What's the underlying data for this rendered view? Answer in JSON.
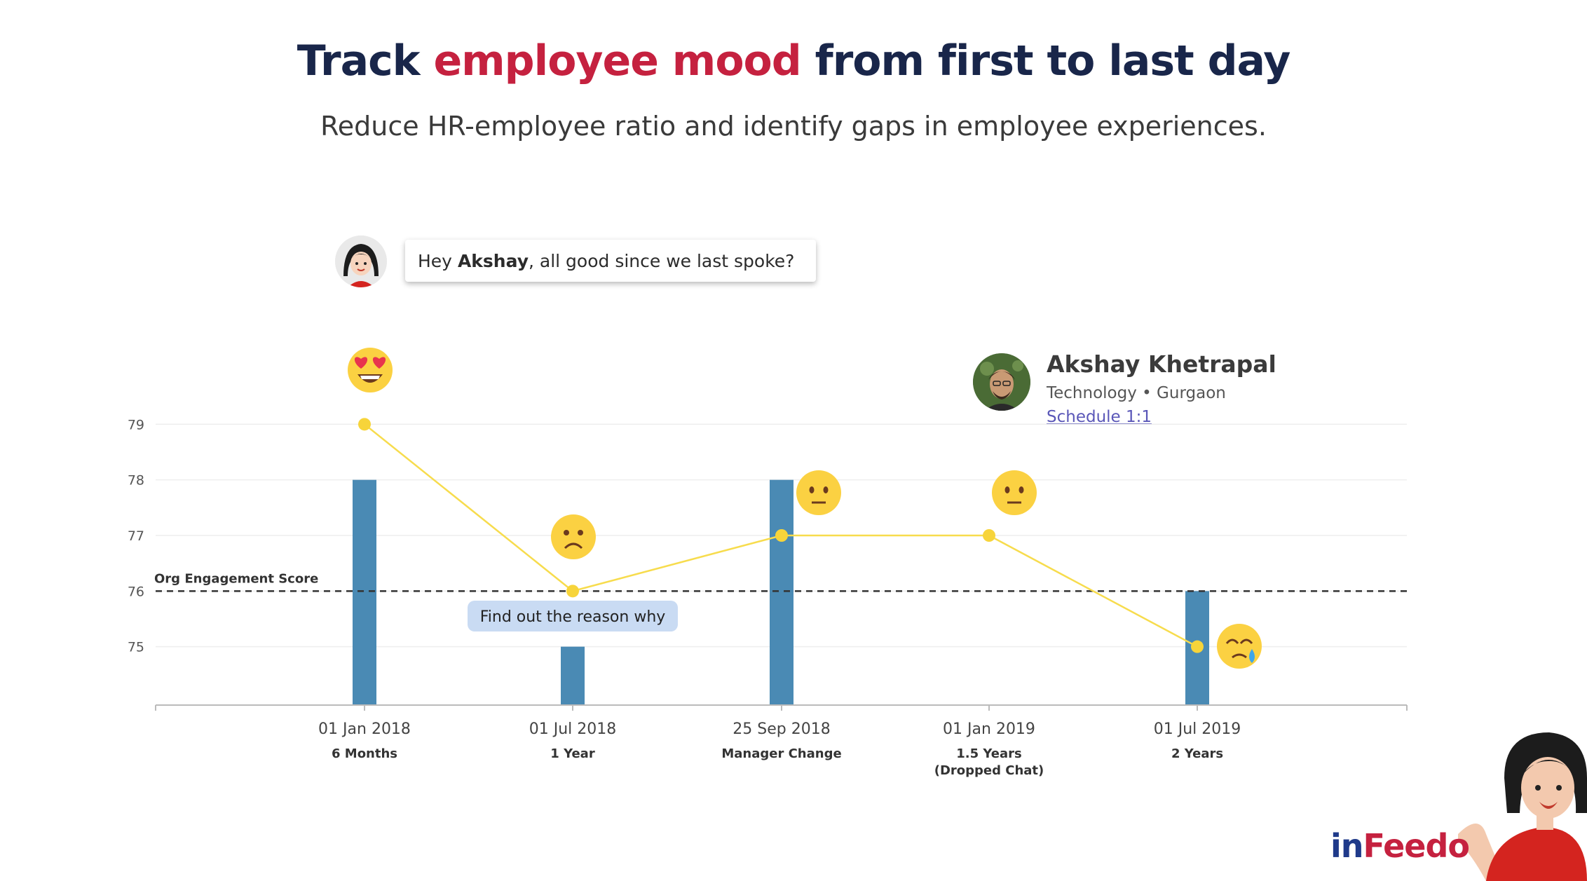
{
  "header": {
    "title_part1": "Track",
    "title_accent": "employee mood",
    "title_part2": "from first to last day",
    "subtitle": "Reduce HR-employee ratio and identify gaps in employee experiences."
  },
  "chat": {
    "greeting_prefix": "Hey",
    "name": "Akshay",
    "greeting_suffix": ", all good since we last spoke?"
  },
  "employee": {
    "name": "Akshay Khetrapal",
    "department": "Technology",
    "separator": "•",
    "location": "Gurgaon",
    "action_label": "Schedule 1:1"
  },
  "colors": {
    "title": "#19264a",
    "accent": "#c5213f",
    "bar": "#4a8ab4",
    "mood_line": "#f7dc4d",
    "mood_point": "#f7d43a",
    "tooltip_bg": "#c9dbf3",
    "brand_in": "#1f3a8a",
    "brand_feedo": "#c5213f"
  },
  "chart_data": {
    "type": "bar",
    "categories": [
      "01 Jan 2018",
      "01 Jul 2018",
      "25 Sep 2018",
      "01 Jan 2019",
      "01 Jul 2019"
    ],
    "category_sublabels": [
      "6 Months",
      "1 Year",
      "Manager Change",
      "1.5 Years (Dropped Chat)",
      "2 Years"
    ],
    "series": [
      {
        "type": "bar",
        "values": [
          78,
          75,
          78,
          null,
          76
        ]
      },
      {
        "type": "line",
        "values": [
          79,
          76,
          77,
          77,
          75
        ]
      }
    ],
    "mood_emojis": [
      "heart-eyes",
      "sad",
      "neutral",
      "neutral",
      "crying"
    ],
    "reference_line": {
      "label": "Org Engagement Score",
      "value": 76
    },
    "annotation": {
      "category": "01 Jul 2018",
      "text": "Find out the reason why"
    },
    "yticks": [
      75,
      76,
      77,
      78,
      79
    ],
    "ylim": [
      74,
      80
    ],
    "grid": true,
    "title": "",
    "xlabel": "",
    "ylabel": ""
  },
  "brand": {
    "in": "in",
    "feedo": "Feedo"
  }
}
